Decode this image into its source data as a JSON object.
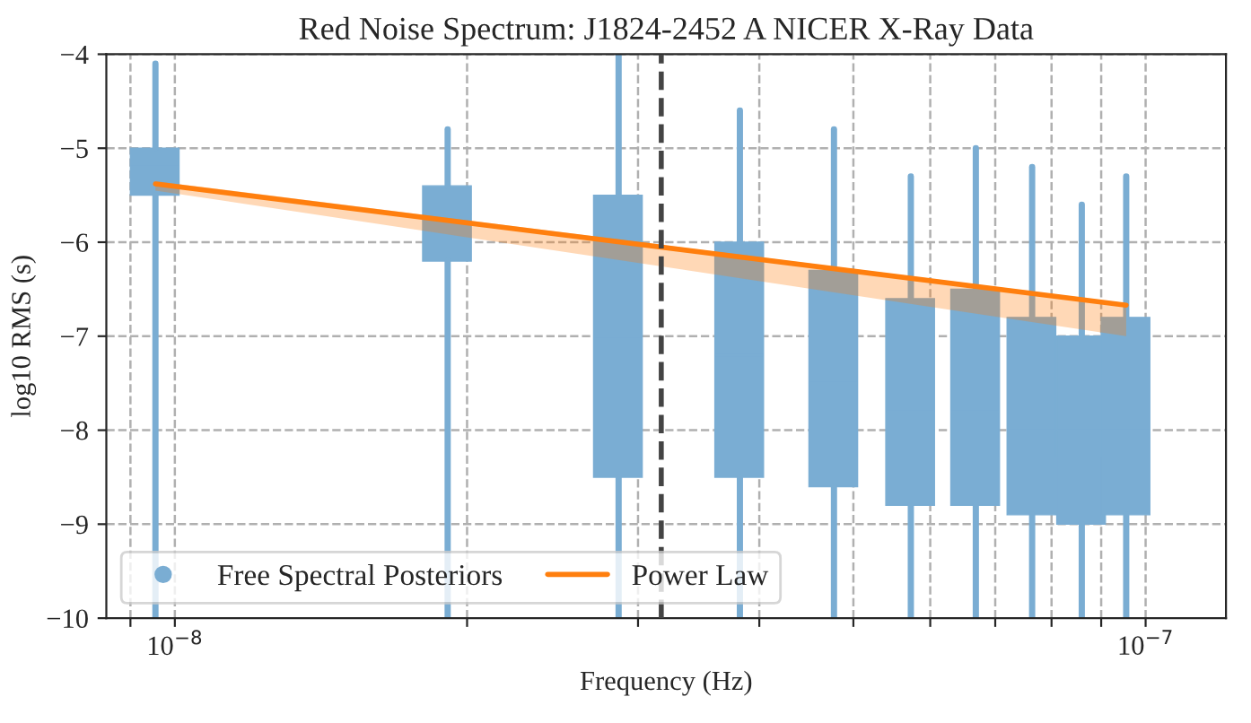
{
  "chart_data": {
    "type": "box",
    "title": "Red Noise Spectrum: J1824-2452 A NICER X-Ray Data",
    "xlabel": "Frequency (Hz)",
    "ylabel": "log10 RMS (s)",
    "log": "x",
    "xlim": [
      8.5e-09,
      1.21e-07
    ],
    "xticks": [
      {
        "value": 9e-09,
        "label": null
      },
      {
        "value": 1e-08,
        "label": "10$^{−8}$"
      },
      {
        "value": 2e-08,
        "label": null
      },
      {
        "value": 3e-08,
        "label": null
      },
      {
        "value": 4e-08,
        "label": null
      },
      {
        "value": 5e-08,
        "label": null
      },
      {
        "value": 6e-08,
        "label": null
      },
      {
        "value": 7e-08,
        "label": null
      },
      {
        "value": 8e-08,
        "label": null
      },
      {
        "value": 9e-08,
        "label": null
      },
      {
        "value": 1e-07,
        "label": "10$^{−7}$"
      }
    ],
    "ylim": [
      -10,
      -4
    ],
    "yticks": [
      -10,
      -9,
      -8,
      -7,
      -6,
      -5,
      -4
    ],
    "grid": true,
    "legend": "bottom left",
    "ref_lines": [
      {
        "axis": "x",
        "value": 3.17e-08,
        "color": "#444444",
        "line_style": "dashed"
      }
    ],
    "series": [
      {
        "name": "Free Spectral Posteriors",
        "type": "box",
        "color": "#7aadd3",
        "x": [
          9.55e-09,
          1.91e-08,
          2.865e-08,
          3.82e-08,
          4.775e-08,
          5.73e-08,
          6.685e-08,
          7.64e-08,
          8.595e-08,
          9.55e-08
        ],
        "boxes": [
          {
            "low": -10,
            "q1": -5.5,
            "median": -5.2,
            "q3": -5.0,
            "high": -4.1
          },
          {
            "low": -10,
            "q1": -6.2,
            "median": -5.7,
            "q3": -5.4,
            "high": -4.8
          },
          {
            "low": -10,
            "q1": -8.5,
            "median": -7.0,
            "q3": -5.5,
            "high": -4.0
          },
          {
            "low": -10,
            "q1": -8.5,
            "median": -7.2,
            "q3": -6.0,
            "high": -4.6
          },
          {
            "low": -10,
            "q1": -8.6,
            "median": -7.5,
            "q3": -6.3,
            "high": -4.8
          },
          {
            "low": -10,
            "q1": -8.8,
            "median": -7.8,
            "q3": -6.6,
            "high": -5.3
          },
          {
            "low": -10,
            "q1": -8.8,
            "median": -7.8,
            "q3": -6.5,
            "high": -5.0
          },
          {
            "low": -10,
            "q1": -8.9,
            "median": -8.0,
            "q3": -6.8,
            "high": -5.2
          },
          {
            "low": -10,
            "q1": -9.0,
            "median": -8.0,
            "q3": -7.0,
            "high": -5.6
          },
          {
            "low": -10,
            "q1": -8.9,
            "median": -8.0,
            "q3": -6.8,
            "high": -5.3
          }
        ]
      },
      {
        "name": "Power Law",
        "type": "line",
        "color": "#ff7f0e",
        "x": [
          9.55e-09,
          9.55e-08
        ],
        "values": [
          -5.38,
          -6.67
        ],
        "lower": [
          -5.45,
          -7.0
        ],
        "upper": [
          -5.35,
          -6.65
        ]
      }
    ]
  }
}
